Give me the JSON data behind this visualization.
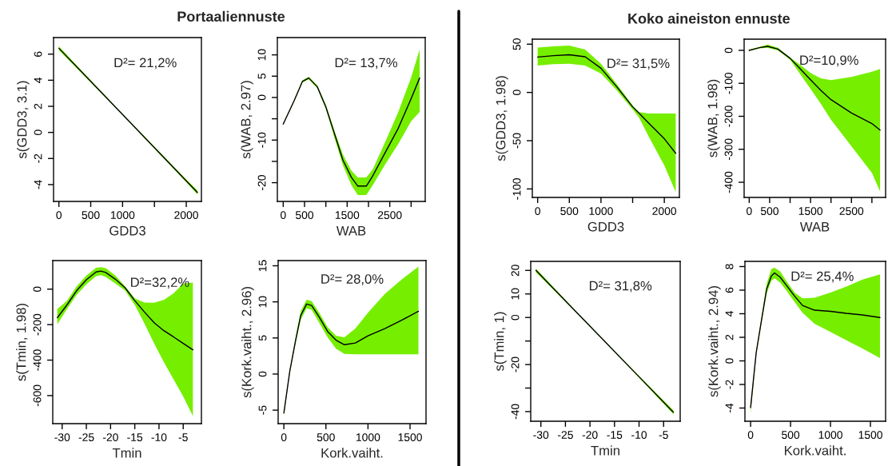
{
  "chart_data": [
    {
      "type": "line",
      "title": "Portaaliennuste",
      "xlabel": "GDD3",
      "ylabel": "s(GDD3, 3.1)",
      "annotations": [
        "D²= 21,2%"
      ],
      "xlim": [
        -84,
        2238
      ],
      "ylim": [
        -5.29,
        7.27
      ],
      "xticks": [
        0,
        500,
        1000,
        {
          "value": 1500,
          "label": null
        },
        2000
      ],
      "yticks": [
        -4,
        -2,
        0,
        2,
        4,
        6
      ],
      "x": [
        0,
        500,
        1000,
        1500,
        2000,
        2175
      ],
      "series": [
        {
          "color": "#000000",
          "values": [
            6.45,
            3.91,
            1.37,
            -1.17,
            -3.71,
            -4.6
          ],
          "lower": [
            6.3,
            3.83,
            1.32,
            -1.24,
            -3.82,
            -4.75
          ],
          "upper": [
            6.6,
            3.99,
            1.42,
            -1.1,
            -3.6,
            -4.45
          ]
        }
      ]
    },
    {
      "type": "line",
      "xlabel": "WAB",
      "ylabel": "s(WAB, 2.97)",
      "annotations": [
        "D²= 13,7%"
      ],
      "xlim": [
        -137.5,
        3331
      ],
      "ylim": [
        -24.4,
        14.06
      ],
      "xticks": [
        0,
        500,
        {
          "value": 1000,
          "label": null
        },
        1500,
        {
          "value": 2000,
          "label": null
        },
        2500,
        {
          "value": 3000,
          "label": null
        }
      ],
      "yticks": [
        {
          "value": -20,
          "label": "-20"
        },
        {
          "value": -15,
          "label": null
        },
        {
          "value": -10,
          "label": "-10"
        },
        {
          "value": -5,
          "label": null
        },
        0,
        5,
        10
      ],
      "x": [
        0,
        250,
        450,
        600,
        800,
        1000,
        1200,
        1400,
        1600,
        1750,
        1950,
        2100,
        2400,
        2700,
        3000,
        3200
      ],
      "series": [
        {
          "color": "#000000",
          "values": [
            -6.25,
            -0.9,
            3.75,
            4.56,
            2.5,
            -2.2,
            -8.4,
            -14.7,
            -18.75,
            -20.8,
            -20.8,
            -18.4,
            -12.8,
            -7.2,
            -0.3,
            4.56
          ],
          "lower": [
            -6.45,
            -1.1,
            3.5,
            4.26,
            2.2,
            -2.7,
            -9.4,
            -15.9,
            -20.6,
            -22.9,
            -22.9,
            -20.6,
            -15.6,
            -10.9,
            -5.6,
            -3.4
          ],
          "upper": [
            -6.05,
            -0.7,
            4.0,
            4.86,
            2.8,
            -1.7,
            -7.8,
            -13.4,
            -17.2,
            -18.75,
            -18.75,
            -16.9,
            -10.3,
            -3.4,
            4.7,
            11.25
          ]
        }
      ]
    },
    {
      "type": "line",
      "title": "Koko aineiston ennuste",
      "xlabel": "GDD3",
      "ylabel": "s(GDD3, 1.98)",
      "annotations": [
        "D²= 31,5%"
      ],
      "xlim": [
        -84,
        2238
      ],
      "ylim": [
        -108.8,
        55.2
      ],
      "xticks": [
        0,
        500,
        1000,
        {
          "value": 1500,
          "label": null
        },
        2000
      ],
      "yticks": [
        -100,
        -50,
        0,
        50
      ],
      "x": [
        0,
        250,
        500,
        750,
        1000,
        1250,
        1500,
        1600,
        1750,
        2000,
        2180
      ],
      "series": [
        {
          "color": "#000000",
          "values": [
            36.7,
            38.1,
            39,
            37,
            25.1,
            5.8,
            -14.9,
            -21.5,
            -31.5,
            -48,
            -63
          ],
          "lower": [
            27.9,
            29.3,
            29.8,
            27.9,
            19.6,
            2.2,
            -17.7,
            -26,
            -45.3,
            -75.7,
            -103.3
          ],
          "upper": [
            46.4,
            47.8,
            48.6,
            44.5,
            29.8,
            8.6,
            -13.5,
            -20.4,
            -21.8,
            -21.8,
            -21.8
          ]
        }
      ]
    },
    {
      "type": "line",
      "xlabel": "WAB",
      "ylabel": "s(WAB, 1.98)",
      "annotations": [
        "D²=10,9%"
      ],
      "xlim": [
        -124,
        3335
      ],
      "ylim": [
        -446,
        33.9
      ],
      "xticks": [
        0,
        500,
        {
          "value": 1000,
          "label": null
        },
        1500,
        {
          "value": 2000,
          "label": null
        },
        2500,
        {
          "value": 3000,
          "label": null
        }
      ],
      "yticks": [
        -400,
        -300,
        -200,
        -100,
        0
      ],
      "x": [
        0,
        250,
        450,
        700,
        1000,
        1250,
        1500,
        1750,
        2000,
        2500,
        3000,
        3200
      ],
      "series": [
        {
          "color": "#000000",
          "values": [
            0,
            8,
            12,
            4,
            -24,
            -56.6,
            -89,
            -121,
            -149.5,
            -190,
            -222,
            -242
          ],
          "lower": [
            -1.6,
            6,
            8,
            0,
            -28.3,
            -72.7,
            -117,
            -161.6,
            -210,
            -291,
            -371.7,
            -428
          ],
          "upper": [
            1.6,
            10,
            17.8,
            8,
            -21.8,
            -44.4,
            -68.7,
            -84.8,
            -90.5,
            -80.8,
            -64.6,
            -56.6
          ]
        }
      ]
    },
    {
      "type": "line",
      "xlabel": "Tmin",
      "ylabel": "s(Tmin, 1.98)",
      "annotations": [
        "D²=32,2%"
      ],
      "xlim": [
        -31.94,
        -1.24
      ],
      "ylim": [
        -758,
        161
      ],
      "xticks": [
        -30,
        -25,
        -20,
        -15,
        -10,
        -5
      ],
      "yticks": [
        -600,
        -400,
        -200,
        0
      ],
      "x": [
        -31,
        -29,
        -27,
        -25,
        -23,
        -22,
        -21,
        -19,
        -17,
        -15,
        -13,
        -11,
        -9,
        -7,
        -5,
        -3
      ],
      "series": [
        {
          "color": "#000000",
          "values": [
            -161,
            -89,
            -8,
            53,
            97,
            102,
            94,
            56,
            8,
            -65,
            -129,
            -189,
            -234,
            -269,
            -306,
            -342
          ],
          "lower": [
            -198,
            -113,
            -32,
            27,
            73,
            79,
            69,
            32,
            -8,
            -89,
            -194,
            -306,
            -411,
            -508,
            -605,
            -715
          ],
          "upper": [
            -113,
            -65,
            16,
            77,
            121,
            124,
            118,
            77,
            16,
            -52,
            -76,
            -77,
            -61,
            -24,
            32,
            37
          ]
        }
      ]
    },
    {
      "type": "line",
      "xlabel": "Kork.vaiht.",
      "ylabel": "s(Kork.vaiht., 2.96)",
      "annotations": [
        "D²= 28,0%"
      ],
      "xlim": [
        -68,
        1690
      ],
      "ylim": [
        -6.87,
        15.72
      ],
      "xticks": [
        0,
        500,
        1000,
        1500
      ],
      "yticks": [
        -5,
        0,
        5,
        10,
        15
      ],
      "x": [
        0,
        70,
        140,
        200,
        270,
        330,
        420,
        520,
        620,
        720,
        850,
        1000,
        1200,
        1400,
        1600
      ],
      "series": [
        {
          "color": "#000000",
          "values": [
            -5.4,
            0.36,
            4.7,
            8.1,
            9.7,
            9.5,
            7.9,
            5.9,
            4.7,
            4.06,
            4.3,
            5.3,
            6.3,
            7.45,
            8.7
          ],
          "lower": [
            -5.8,
            0.16,
            4.3,
            7.5,
            9.1,
            8.9,
            7.1,
            5.1,
            3.5,
            2.8,
            2.75,
            2.75,
            2.75,
            2.75,
            2.75
          ],
          "upper": [
            -5.2,
            0.56,
            5.1,
            8.7,
            10.3,
            10.1,
            8.5,
            6.5,
            5.3,
            5.1,
            6.3,
            8.5,
            11.1,
            13.1,
            14.9
          ]
        }
      ]
    },
    {
      "type": "line",
      "xlabel": "Tmin",
      "ylabel": "s(Tmin, 1)",
      "annotations": [
        "D²= 31,8%"
      ],
      "xlim": [
        -32.07,
        -1.62
      ],
      "ylim": [
        -44.1,
        23.85
      ],
      "xticks": [
        -30,
        -25,
        -20,
        -15,
        -10,
        -5
      ],
      "yticks": [
        {
          "value": -40,
          "label": "-40"
        },
        {
          "value": -30,
          "label": null
        },
        {
          "value": -20,
          "label": "-20"
        },
        {
          "value": -10,
          "label": null
        },
        0,
        10,
        20
      ],
      "x": [
        -31,
        -24,
        -17,
        -10,
        -3
      ],
      "series": [
        {
          "color": "#000000",
          "values": [
            20,
            4.92,
            -10.15,
            -25.2,
            -40.3
          ],
          "lower": [
            19.2,
            4.6,
            -10.35,
            -25.6,
            -41.1
          ],
          "upper": [
            20.8,
            5.24,
            -9.95,
            -24.8,
            -39.5
          ]
        }
      ]
    },
    {
      "type": "line",
      "xlabel": "Kork.vaiht.",
      "ylabel": "s(Kork.vaiht., 2.94)",
      "annotations": [
        "D²= 25,4%"
      ],
      "xlim": [
        -71,
        1690
      ],
      "ylim": [
        -5.12,
        8.44
      ],
      "xticks": [
        0,
        500,
        1000,
        1500
      ],
      "yticks": [
        -4,
        -2,
        0,
        2,
        4,
        6,
        8
      ],
      "x": [
        0,
        70,
        140,
        200,
        260,
        300,
        370,
        450,
        550,
        650,
        800,
        1000,
        1200,
        1400,
        1620
      ],
      "series": [
        {
          "color": "#000000",
          "values": [
            -3.96,
            0.7,
            3.6,
            6.06,
            7.2,
            7.46,
            7.1,
            6.4,
            5.5,
            4.7,
            4.3,
            4.2,
            4.03,
            3.9,
            3.68
          ],
          "lower": [
            -4.43,
            0.47,
            3.38,
            5.7,
            6.8,
            7.0,
            6.64,
            5.94,
            5.0,
            4.08,
            3.15,
            2.45,
            1.75,
            1.05,
            0.23
          ],
          "upper": [
            -3.85,
            0.8,
            3.85,
            6.5,
            7.8,
            7.9,
            7.6,
            6.76,
            5.8,
            5.3,
            5.36,
            5.8,
            6.3,
            6.9,
            7.34
          ]
        }
      ]
    }
  ]
}
